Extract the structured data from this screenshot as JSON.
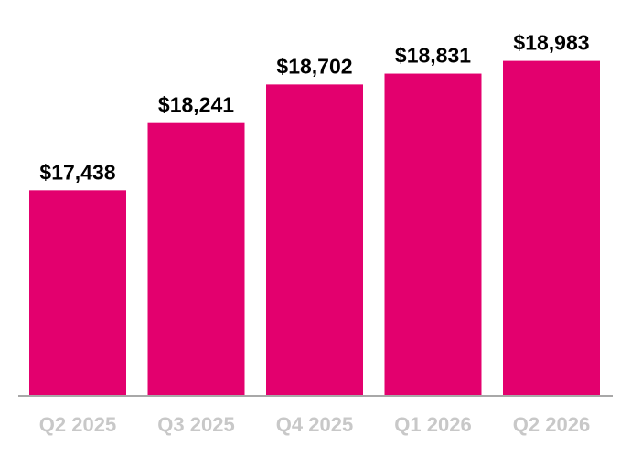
{
  "chart_data": {
    "type": "bar",
    "categories": [
      "Q2 2025",
      "Q3 2025",
      "Q4 2025",
      "Q1 2026",
      "Q2 2026"
    ],
    "values": [
      17438,
      18241,
      18702,
      18831,
      18983
    ],
    "data_labels": [
      "$17,438",
      "$18,241",
      "$18,702",
      "$18,831",
      "$18,983"
    ],
    "title": "",
    "xlabel": "",
    "ylabel": "",
    "ylim": [
      15000,
      19600
    ],
    "grid": false,
    "legend": "none",
    "colors": {
      "bar": "#E3006E",
      "axis": "#a8a8a8",
      "tick_label": "#c8c8c8",
      "data_label": "#000000"
    }
  }
}
